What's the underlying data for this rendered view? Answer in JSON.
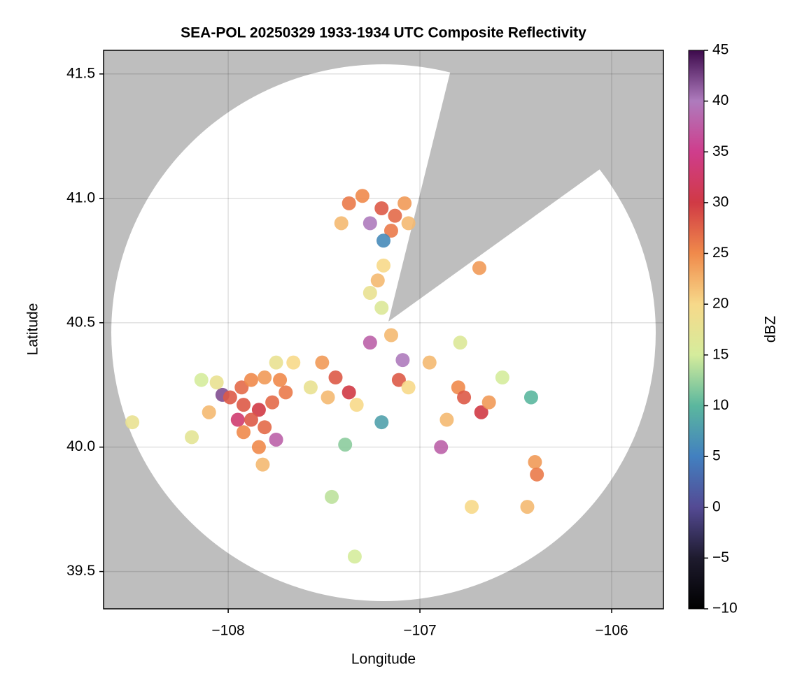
{
  "chart_data": {
    "type": "scatter",
    "title": "SEA-POL 20250329 1933-1934 UTC Composite Reflectivity",
    "x_label": "Longitude",
    "y_label": "Latitude",
    "xlim": [
      -108.65,
      -105.73
    ],
    "ylim": [
      39.35,
      41.595
    ],
    "xticks": [
      {
        "value": -108,
        "label": "−108"
      },
      {
        "value": -107,
        "label": "−107"
      },
      {
        "value": -106,
        "label": "−106"
      }
    ],
    "yticks": [
      39.5,
      {
        "value": 40,
        "label": "40.0"
      },
      40.5,
      {
        "value": 41,
        "label": "41.0"
      },
      41.5
    ],
    "grid": true,
    "background": "#bebebe",
    "x": [
      -108.03,
      -107.99,
      -107.93,
      -107.88,
      -107.81,
      -107.73,
      -107.7,
      -107.92,
      -107.84,
      -107.77,
      -107.95,
      -107.88,
      -107.81,
      -107.75,
      -107.84,
      -107.82,
      -108.1,
      -108.14,
      -108.06,
      -107.66,
      -107.75,
      -108.5,
      -108.19,
      -107.92,
      -107.51,
      -107.44,
      -107.37,
      -107.33,
      -107.48,
      -107.57,
      -107.22,
      -107.19,
      -107.26,
      -107.2,
      -107.26,
      -107.09,
      -107.11,
      -107.15,
      -107.06,
      -107.37,
      -107.3,
      -107.2,
      -107.26,
      -107.13,
      -107.08,
      -107.15,
      -107.06,
      -107.19,
      -107.41,
      -106.8,
      -106.77,
      -106.68,
      -106.64,
      -106.86,
      -106.89,
      -106.95,
      -106.57,
      -106.42,
      -106.69,
      -106.4,
      -106.39,
      -106.73,
      -106.44,
      -106.79,
      -107.2,
      -107.39,
      -107.34,
      -107.46
    ],
    "y": [
      40.21,
      40.2,
      40.24,
      40.27,
      40.28,
      40.27,
      40.22,
      40.17,
      40.15,
      40.18,
      40.11,
      40.11,
      40.08,
      40.03,
      40.0,
      39.93,
      40.14,
      40.27,
      40.26,
      40.34,
      40.34,
      40.1,
      40.04,
      40.06,
      40.34,
      40.28,
      40.22,
      40.17,
      40.2,
      40.24,
      40.67,
      40.73,
      40.62,
      40.56,
      40.42,
      40.35,
      40.27,
      40.45,
      40.24,
      40.98,
      41.01,
      40.96,
      40.9,
      40.93,
      40.98,
      40.87,
      40.9,
      40.83,
      40.9,
      40.24,
      40.2,
      40.14,
      40.18,
      40.11,
      40.0,
      40.34,
      40.28,
      40.2,
      40.72,
      39.94,
      39.89,
      39.76,
      39.76,
      40.42,
      40.1,
      40.01,
      39.56,
      39.8
    ],
    "values": [
      42,
      28,
      27,
      25,
      24,
      25,
      26,
      28,
      30,
      27,
      33,
      28,
      27,
      38,
      25,
      22,
      22,
      15,
      18,
      20,
      18,
      18,
      17,
      25,
      24,
      28,
      30,
      20,
      22,
      18,
      22,
      20,
      18,
      16,
      38,
      40,
      28,
      22,
      20,
      26,
      25,
      28,
      40,
      27,
      24,
      26,
      22,
      6,
      22,
      25,
      28,
      30,
      24,
      22,
      38,
      22,
      15,
      10,
      24,
      24,
      26,
      20,
      22,
      16,
      8,
      12,
      15,
      14
    ],
    "colorbar": {
      "label": "dBZ",
      "lim": [
        -10,
        45
      ],
      "ticks": [
        {
          "value": -10,
          "label": "−10"
        },
        {
          "value": -5,
          "label": "−5"
        },
        0,
        5,
        10,
        15,
        20,
        25,
        30,
        35,
        40,
        45
      ],
      "colors": [
        "#000000",
        "#1e1b2e",
        "#544a94",
        "#4280c0",
        "#5bb79e",
        "#d5ec9c",
        "#f7d98a",
        "#f08a4b",
        "#d03a45",
        "#cf3d8c",
        "#ae7bbd",
        "#3d0a4c"
      ]
    }
  }
}
